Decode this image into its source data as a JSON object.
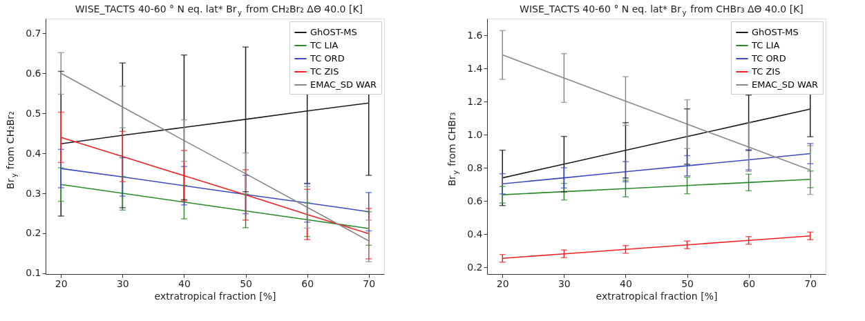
{
  "chart_data": [
    {
      "type": "line",
      "title": "WISE_TACTS 40-60 ° N eq. lat* Br$_{y}$ from CH₂Br₂ ΔΘ 40.0 [K]",
      "xlabel": "extratropical fraction [%]",
      "ylabel": "Br$_{y}$ from CH₂Br₂",
      "x": [
        20,
        30,
        40,
        50,
        60,
        70
      ],
      "xlim": [
        17.5,
        72.5
      ],
      "xticks": [
        20,
        30,
        40,
        50,
        60,
        70
      ],
      "ylim": [
        0.098,
        0.737
      ],
      "yticks": [
        0.1,
        0.2,
        0.3,
        0.4,
        0.5,
        0.6,
        0.7
      ],
      "grid": false,
      "legend": "top right",
      "marker": "none",
      "line_style": "solid",
      "series": [
        {
          "name": "GhOST-MS",
          "color": "#1a1a1a",
          "values": [
            0.424,
            0.445,
            0.465,
            0.485,
            0.506,
            0.526
          ],
          "errors": [
            0.181,
            0.181,
            0.181,
            0.181,
            0.181,
            0.181
          ]
        },
        {
          "name": "TC LIA",
          "color": "#2a8a2a",
          "values": [
            0.322,
            0.3,
            0.278,
            0.256,
            0.234,
            0.212
          ],
          "errors": [
            0.042,
            0.042,
            0.042,
            0.042,
            0.042,
            0.042
          ]
        },
        {
          "name": "TC ORD",
          "color": "#3b4cc0",
          "values": [
            0.362,
            0.341,
            0.319,
            0.297,
            0.276,
            0.254
          ],
          "errors": [
            0.048,
            0.048,
            0.048,
            0.048,
            0.048,
            0.048
          ]
        },
        {
          "name": "TC ZIS",
          "color": "#f02020",
          "values": [
            0.44,
            0.392,
            0.344,
            0.296,
            0.247,
            0.199
          ],
          "errors": [
            0.063,
            0.063,
            0.063,
            0.063,
            0.063,
            0.063
          ]
        },
        {
          "name": "EMAC_SD WAR",
          "color": "#888888",
          "values": [
            0.6,
            0.516,
            0.432,
            0.349,
            0.265,
            0.181
          ],
          "errors": [
            0.052,
            0.052,
            0.052,
            0.052,
            0.052,
            0.052
          ]
        }
      ]
    },
    {
      "type": "line",
      "title": "WISE_TACTS 40-60 ° N eq. lat* Br$_{y}$ from CHBr₃ ΔΘ 40.0 [K]",
      "xlabel": "extratropical fraction [%]",
      "ylabel": "Br$_{y}$ from CHBr₃",
      "x": [
        20,
        30,
        40,
        50,
        60,
        70
      ],
      "xlim": [
        17.5,
        72.5
      ],
      "xticks": [
        20,
        30,
        40,
        50,
        60,
        70
      ],
      "ylim": [
        0.16,
        1.7
      ],
      "yticks": [
        0.2,
        0.4,
        0.6,
        0.8,
        {
          "value": 1.0,
          "label": "1.0"
        },
        1.2,
        1.4,
        1.6
      ],
      "grid": false,
      "legend": "top right",
      "marker": "none",
      "line_style": "solid",
      "series": [
        {
          "name": "GhOST-MS",
          "color": "#1a1a1a",
          "values": [
            0.74,
            0.823,
            0.906,
            0.989,
            1.072,
            1.155
          ],
          "errors": [
            0.167,
            0.167,
            0.167,
            0.167,
            0.167,
            0.167
          ]
        },
        {
          "name": "TC LIA",
          "color": "#2a8a2a",
          "values": [
            0.638,
            0.657,
            0.675,
            0.694,
            0.712,
            0.731
          ],
          "errors": [
            0.05,
            0.05,
            0.05,
            0.05,
            0.05,
            0.05
          ]
        },
        {
          "name": "TC ORD",
          "color": "#3b4cc0",
          "values": [
            0.704,
            0.74,
            0.777,
            0.813,
            0.849,
            0.886
          ],
          "errors": [
            0.061,
            0.061,
            0.061,
            0.061,
            0.061,
            0.061
          ]
        },
        {
          "name": "TC ZIS",
          "color": "#f02020",
          "values": [
            0.255,
            0.282,
            0.309,
            0.336,
            0.363,
            0.39
          ],
          "errors": [
            0.023,
            0.023,
            0.023,
            0.023,
            0.023,
            0.023
          ]
        },
        {
          "name": "EMAC_SD WAR",
          "color": "#888888",
          "values": [
            1.481,
            1.342,
            1.203,
            1.064,
            0.926,
            0.787
          ],
          "errors": [
            0.147,
            0.147,
            0.147,
            0.147,
            0.147,
            0.147
          ]
        }
      ]
    }
  ]
}
